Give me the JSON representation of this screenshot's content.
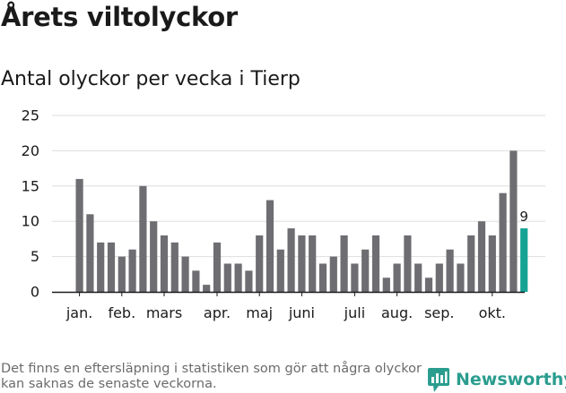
{
  "title": "Årets viltolyckor",
  "subtitle": "Antal olyckor per vecka i Tierp",
  "footnote": "Det finns en eftersläpning i statistiken som gör att några olyckor kan saknas de senaste veckorna.",
  "brand": {
    "name": "Newsworthy",
    "logo_icon": "newsworthy-chart-bubble-icon",
    "color": "#2a9d8f"
  },
  "colors": {
    "bar": "#6e6e72",
    "highlight": "#16a394",
    "grid": "#dddddd",
    "axis": "#1a1a1a"
  },
  "chart_data": {
    "type": "bar",
    "title": "Antal olyckor per vecka i Tierp",
    "xlabel": "",
    "ylabel": "",
    "ylim": [
      0,
      25
    ],
    "yticks": [
      0,
      5,
      10,
      15,
      20,
      25
    ],
    "grid": true,
    "series": [
      {
        "name": "Antal olyckor",
        "values": [
          16,
          11,
          7,
          7,
          5,
          6,
          15,
          10,
          8,
          7,
          5,
          3,
          1,
          7,
          4,
          4,
          3,
          8,
          13,
          6,
          9,
          8,
          8,
          4,
          5,
          8,
          4,
          6,
          8,
          2,
          4,
          8,
          4,
          2,
          4,
          6,
          4,
          8,
          10,
          8,
          14,
          20,
          9
        ]
      }
    ],
    "highlight_last": true,
    "highlight_label": "9",
    "month_labels": [
      {
        "label": "jan.",
        "week_index": 0
      },
      {
        "label": "feb.",
        "week_index": 4
      },
      {
        "label": "mars",
        "week_index": 8
      },
      {
        "label": "apr.",
        "week_index": 13
      },
      {
        "label": "maj",
        "week_index": 17
      },
      {
        "label": "juni",
        "week_index": 21
      },
      {
        "label": "juli",
        "week_index": 26
      },
      {
        "label": "aug.",
        "week_index": 30
      },
      {
        "label": "sep.",
        "week_index": 34
      },
      {
        "label": "okt.",
        "week_index": 39
      }
    ]
  }
}
